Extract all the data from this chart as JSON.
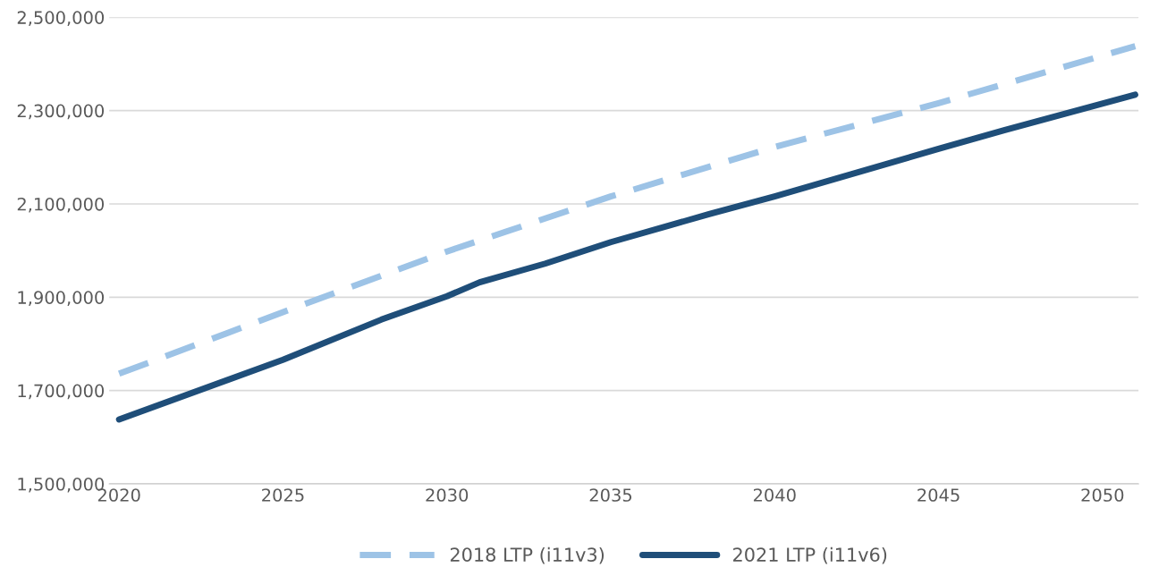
{
  "chart_data": {
    "type": "line",
    "x": [
      2020,
      2025,
      2028,
      2030,
      2031,
      2033,
      2035,
      2038,
      2040,
      2045,
      2047,
      2051
    ],
    "series": [
      {
        "name": "2018 LTP (i11v3)",
        "color": "#9dc3e6",
        "line_style": "dashed",
        "x": [
          2020,
          2025,
          2030,
          2035,
          2040,
          2045,
          2051
        ],
        "values": [
          1736000,
          1868000,
          1998000,
          2116000,
          2222000,
          2316000,
          2438000
        ]
      },
      {
        "name": "2021 LTP (i11v6)",
        "color": "#1f4e79",
        "line_style": "solid",
        "values": [
          1638000,
          1766000,
          1852000,
          1902000,
          1932000,
          1972000,
          2018000,
          2078000,
          2116000,
          2218000,
          2258000,
          2334000
        ]
      }
    ],
    "xlim": [
      2019.7,
      2051.1
    ],
    "xticks": [
      2020,
      2025,
      2030,
      2035,
      2040,
      2045,
      2050
    ],
    "ylim": [
      1500000,
      2500000
    ],
    "yticks": [
      {
        "value": 1500000,
        "label": "1,500,000"
      },
      {
        "value": 1700000,
        "label": "1,700,000"
      },
      {
        "value": 1900000,
        "label": "1,900,000"
      },
      {
        "value": 2100000,
        "label": "2,100,000"
      },
      {
        "value": 2300000,
        "label": "2,300,000"
      },
      {
        "value": 2500000,
        "label": "2,500,000"
      }
    ],
    "grid": "y",
    "legend": "bottom",
    "marker": "none"
  }
}
